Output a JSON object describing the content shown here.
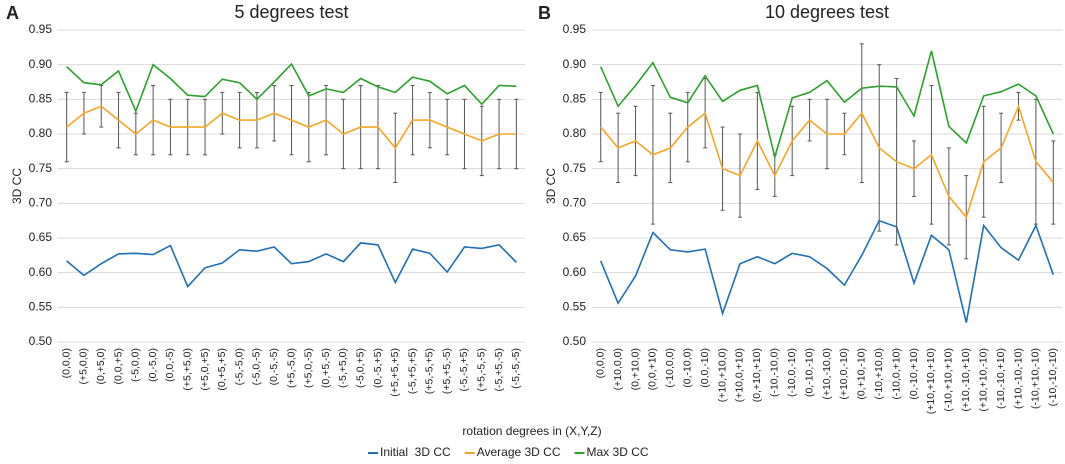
{
  "chart_data": [
    {
      "type": "line",
      "panel": "A",
      "title": "5 degrees test",
      "ylabel": "3D CC",
      "xlabel": "rotation degrees in (X,Y,Z)",
      "categories": [
        "(0,0,0)",
        "(+5,0,0)",
        "(0,+5,0)",
        "(0,0,+5)",
        "(-5,0,0)",
        "(0,-5,0)",
        "(0,0,-5)",
        "(+5,+5,0)",
        "(+5,0,+5)",
        "(0,+5,+5)",
        "(-5,-5,0)",
        "(-5,0,-5)",
        "(0,-5,-5)",
        "(+5,-5,0)",
        "(+5,0,-5)",
        "(0,+5,-5)",
        "(-5,+5,0)",
        "(-5,0,+5)",
        "(0,-5,+5)",
        "(+5,+5,+5)",
        "(-5,+5,+5)",
        "(+5,-5,+5)",
        "(+5,+5,-5)",
        "(-5,-5,+5)",
        "(+5,-5,-5)",
        "(-5,+5,-5)",
        "(-5,-5,-5)"
      ],
      "series": [
        {
          "name": "Initial  3D CC",
          "color": "#1f6fb5",
          "values": [
            0.617,
            0.596,
            0.613,
            0.627,
            0.628,
            0.626,
            0.639,
            0.58,
            0.607,
            0.614,
            0.633,
            0.631,
            0.637,
            0.613,
            0.616,
            0.627,
            0.616,
            0.643,
            0.64,
            0.586,
            0.634,
            0.628,
            0.601,
            0.637,
            0.635,
            0.64,
            0.615
          ]
        },
        {
          "name": "Average 3D CC",
          "color": "#f5a623",
          "values": [
            0.81,
            0.83,
            0.84,
            0.82,
            0.8,
            0.82,
            0.81,
            0.81,
            0.81,
            0.83,
            0.82,
            0.82,
            0.83,
            0.82,
            0.81,
            0.82,
            0.8,
            0.81,
            0.81,
            0.78,
            0.82,
            0.82,
            0.81,
            0.8,
            0.79,
            0.8,
            0.8
          ],
          "errors": [
            0.05,
            0.03,
            0.03,
            0.04,
            0.03,
            0.05,
            0.04,
            0.04,
            0.04,
            0.03,
            0.04,
            0.04,
            0.04,
            0.05,
            0.05,
            0.05,
            0.05,
            0.06,
            0.06,
            0.05,
            0.05,
            0.04,
            0.04,
            0.05,
            0.05,
            0.05,
            0.05
          ]
        },
        {
          "name": "Max 3D CC",
          "color": "#2ca02c",
          "values": [
            0.897,
            0.874,
            0.871,
            0.891,
            0.833,
            0.9,
            0.88,
            0.856,
            0.854,
            0.879,
            0.874,
            0.85,
            0.875,
            0.901,
            0.855,
            0.865,
            0.86,
            0.88,
            0.868,
            0.86,
            0.882,
            0.876,
            0.858,
            0.87,
            0.843,
            0.87,
            0.869
          ]
        }
      ],
      "ylim": [
        0.5,
        0.95
      ],
      "yticks": [
        {
          "value": 0.5,
          "label": "0.50"
        },
        {
          "value": 0.55,
          "label": "0.55"
        },
        {
          "value": 0.6,
          "label": "0.60"
        },
        {
          "value": 0.65,
          "label": "0.65"
        },
        {
          "value": 0.7,
          "label": "0.70"
        },
        {
          "value": 0.75,
          "label": "0.75"
        },
        {
          "value": 0.8,
          "label": "0.80"
        },
        {
          "value": 0.85,
          "label": "0.85"
        },
        {
          "value": 0.9,
          "label": "0.90"
        },
        {
          "value": 0.95,
          "label": "0.95"
        }
      ],
      "grid": true
    },
    {
      "type": "line",
      "panel": "B",
      "title": "10 degrees test",
      "ylabel": "3D CC",
      "categories": [
        "(0,0,0)",
        "(+10,0,0)",
        "(0,+10,0)",
        "(0,0,+10)",
        "(-10,0,0)",
        "(0,-10,0)",
        "(0,0,-10)",
        "(+10,+10,0)",
        "(+10,0,+10)",
        "(0,+10,+10)",
        "(-10,-10,0)",
        "(-10,0,-10)",
        "(0,-10,-10)",
        "(+10,-10,0)",
        "(+10,0,-10)",
        "(0,+10,-10)",
        "(-10,+10,0)",
        "(-10,0,+10)",
        "(0,-10,+10)",
        "(+10,+10,+10)",
        "(-10,+10,+10)",
        "(+10,-10,+10)",
        "(+10,+10,-10)",
        "(-10,-10,+10)",
        "(+10,-10,-10)",
        "(-10,+10,-10)",
        "(-10,-10,-10)"
      ],
      "series": [
        {
          "color": "#1f6fb5",
          "values": [
            0.617,
            0.556,
            0.595,
            0.658,
            0.633,
            0.63,
            0.634,
            0.541,
            0.613,
            0.623,
            0.613,
            0.628,
            0.623,
            0.606,
            0.582,
            0.625,
            0.675,
            0.666,
            0.585,
            0.654,
            0.633,
            0.528,
            0.668,
            0.636,
            0.618,
            0.668,
            0.597
          ]
        },
        {
          "color": "#f5a623",
          "values": [
            0.81,
            0.78,
            0.79,
            0.77,
            0.78,
            0.81,
            0.83,
            0.75,
            0.74,
            0.79,
            0.74,
            0.79,
            0.82,
            0.8,
            0.8,
            0.83,
            0.78,
            0.76,
            0.75,
            0.77,
            0.71,
            0.68,
            0.76,
            0.78,
            0.84,
            0.76,
            0.73
          ],
          "errors": [
            0.05,
            0.05,
            0.05,
            0.1,
            0.05,
            0.05,
            0.05,
            0.06,
            0.06,
            0.07,
            0.03,
            0.05,
            0.03,
            0.05,
            0.03,
            0.1,
            0.12,
            0.12,
            0.04,
            0.1,
            0.07,
            0.06,
            0.08,
            0.05,
            0.02,
            0.09,
            0.06
          ]
        },
        {
          "color": "#2ca02c",
          "values": [
            0.897,
            0.84,
            0.87,
            0.903,
            0.853,
            0.845,
            0.884,
            0.847,
            0.863,
            0.87,
            0.767,
            0.852,
            0.86,
            0.877,
            0.846,
            0.866,
            0.869,
            0.868,
            0.826,
            0.92,
            0.811,
            0.787,
            0.855,
            0.861,
            0.872,
            0.855,
            0.8
          ]
        }
      ],
      "ylim": [
        0.5,
        0.95
      ],
      "yticks": [
        {
          "value": 0.5,
          "label": "0.50"
        },
        {
          "value": 0.55,
          "label": "0.55"
        },
        {
          "value": 0.6,
          "label": "0.60"
        },
        {
          "value": 0.65,
          "label": "0.65"
        },
        {
          "value": 0.7,
          "label": "0.70"
        },
        {
          "value": 0.75,
          "label": "0.75"
        },
        {
          "value": 0.8,
          "label": "0.80"
        },
        {
          "value": 0.85,
          "label": "0.85"
        },
        {
          "value": 0.9,
          "label": "0.90"
        },
        {
          "value": 0.95,
          "label": "0.95"
        }
      ],
      "grid": true
    }
  ]
}
